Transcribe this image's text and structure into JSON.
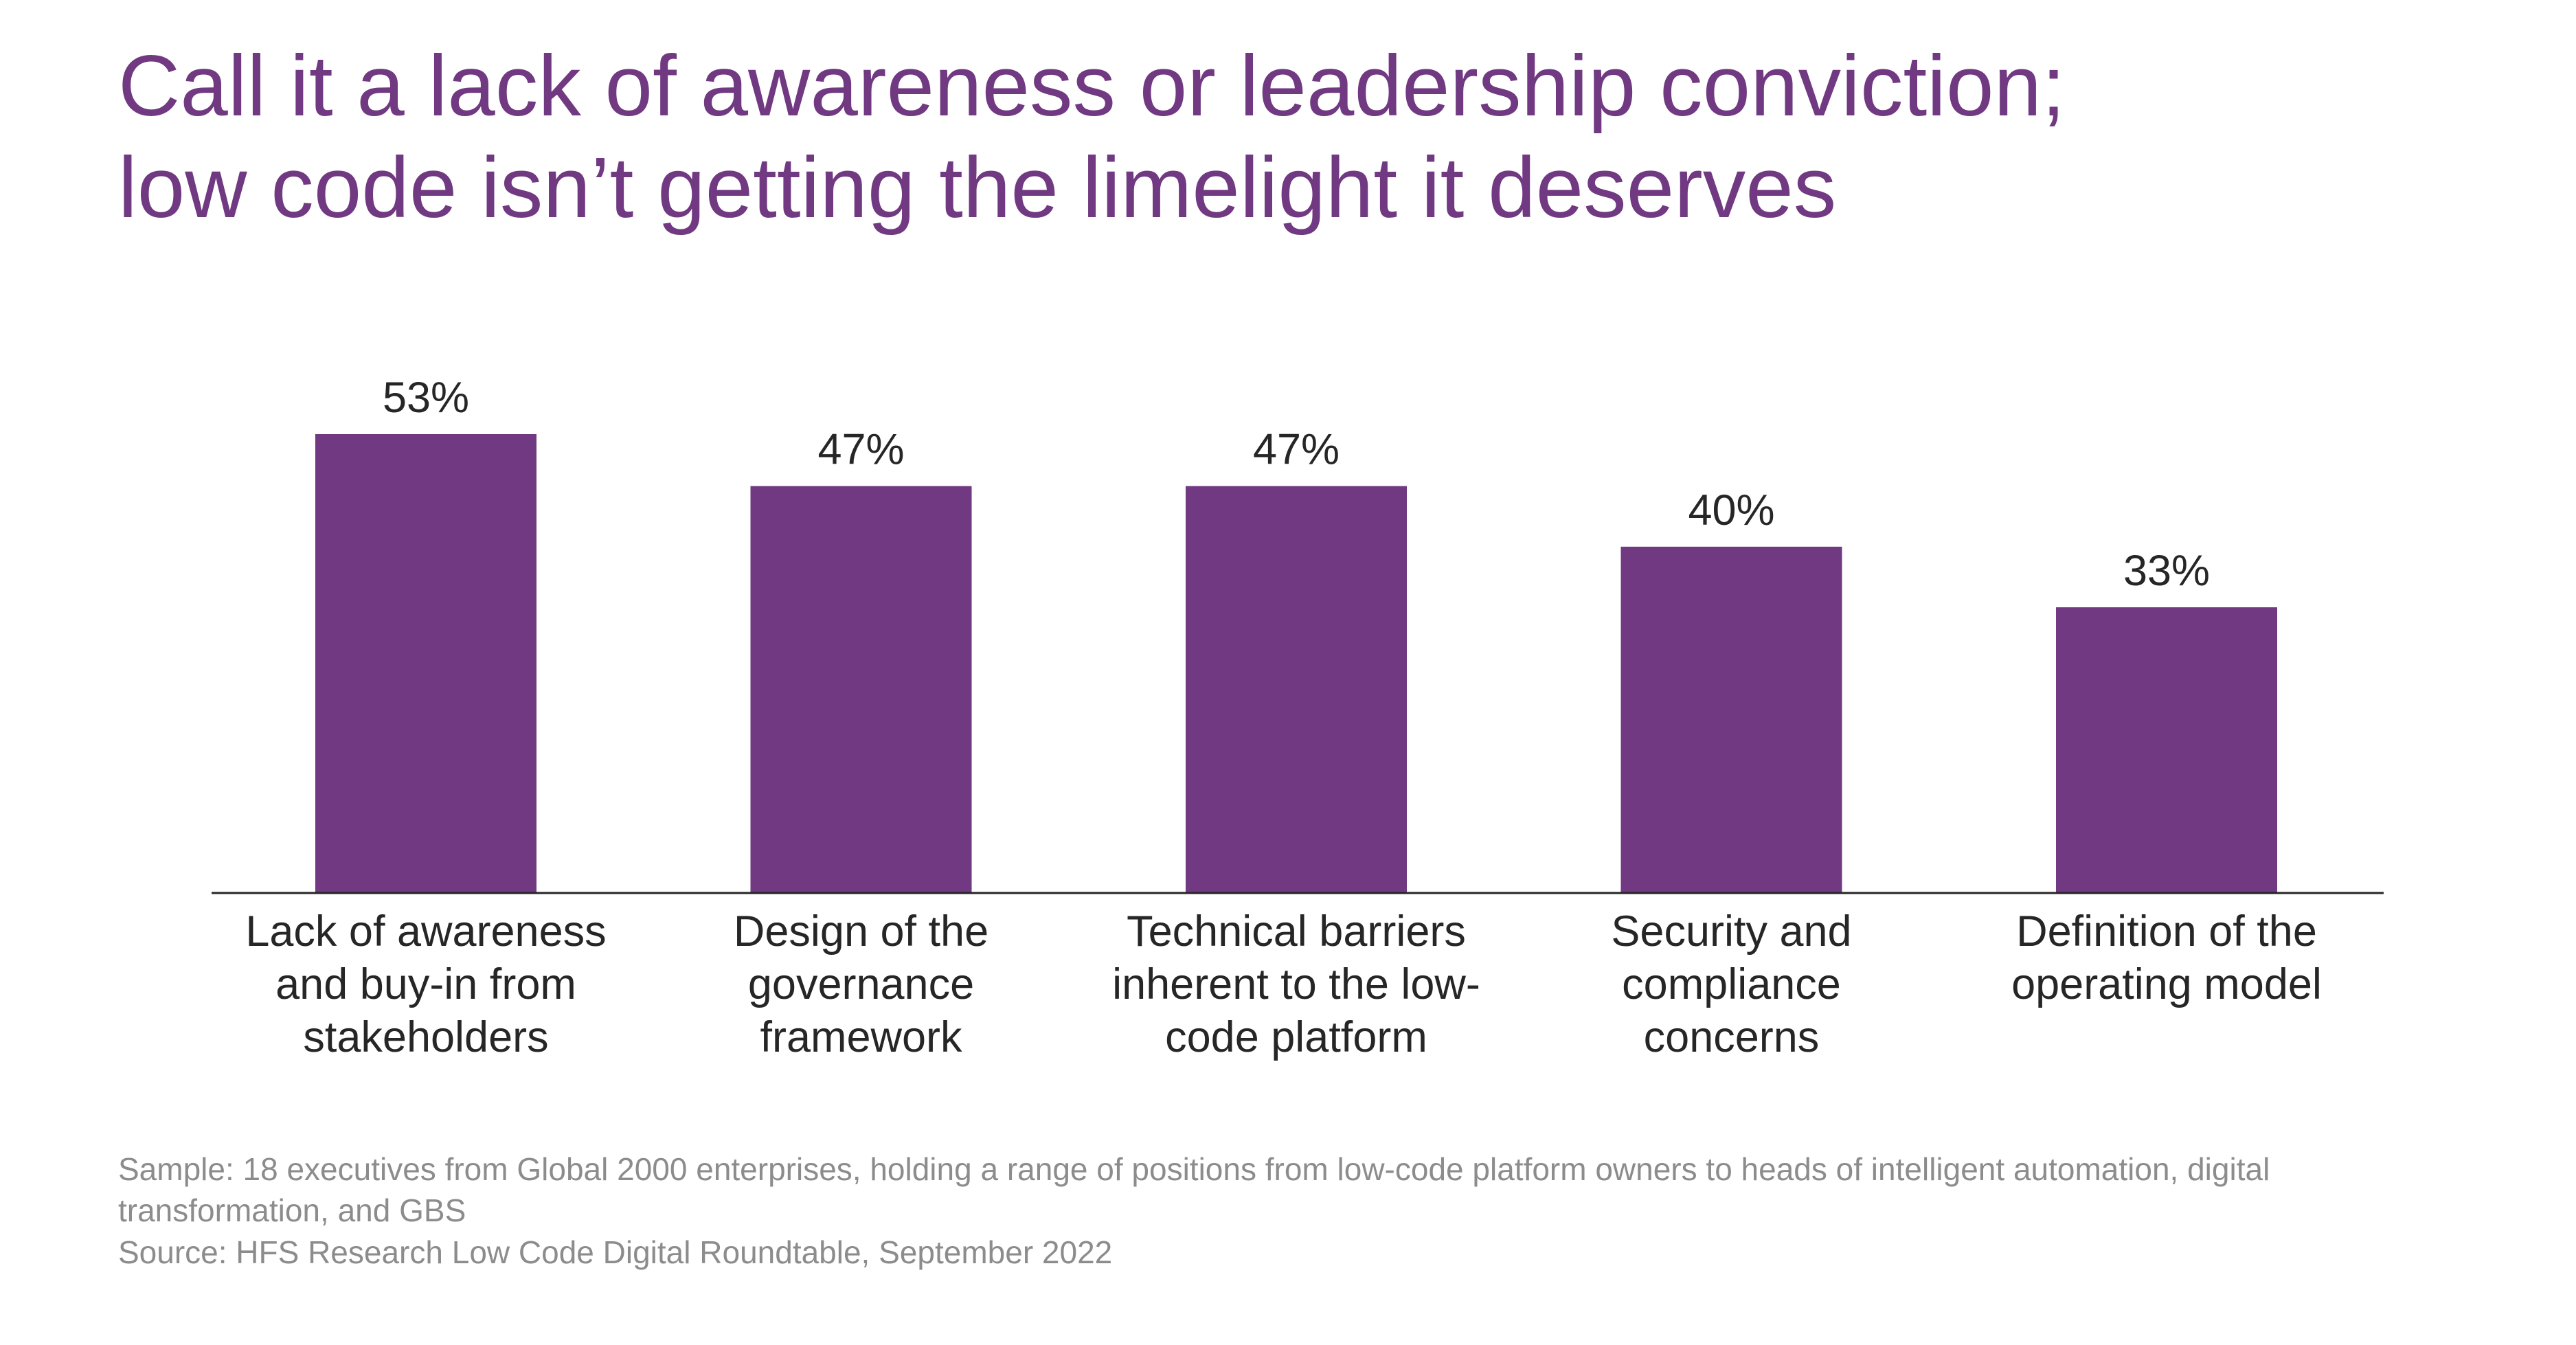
{
  "title_lines": [
    "Call it a lack of awareness or leadership conviction;",
    "low code isn’t getting the limelight it deserves"
  ],
  "colors": {
    "accent": "#703981",
    "bar": "#703981",
    "axis": "#262626",
    "label_text": "#262626",
    "footnote_text": "#8c8c8c"
  },
  "chart_data": {
    "type": "bar",
    "categories": [
      "Lack of awareness and buy-in from stakeholders",
      "Design of the governance framework",
      "Technical barriers inherent to the low-code platform",
      "Security and compliance concerns",
      "Definition of the operating model"
    ],
    "category_lines": [
      [
        "Lack of awareness",
        "and buy-in from",
        "stakeholders"
      ],
      [
        "Design of the",
        "governance",
        "framework"
      ],
      [
        "Technical barriers",
        "inherent to the low-",
        "code platform"
      ],
      [
        "Security and",
        "compliance",
        "concerns"
      ],
      [
        "Definition of the",
        "operating model"
      ]
    ],
    "values": [
      53,
      47,
      47,
      40,
      33
    ],
    "data_labels": [
      "53%",
      "47%",
      "47%",
      "40%",
      "33%"
    ],
    "ylim": [
      0,
      53
    ],
    "grid": false,
    "legend": "none",
    "xlabel": "",
    "ylabel": ""
  },
  "footnote": {
    "sample_line1": "Sample: 18 executives from Global 2000 enterprises, holding a range of positions from low-code platform owners to heads of intelligent automation, digital",
    "sample_line2": "transformation, and GBS",
    "source": "Source: HFS Research Low Code Digital Roundtable, September 2022"
  }
}
